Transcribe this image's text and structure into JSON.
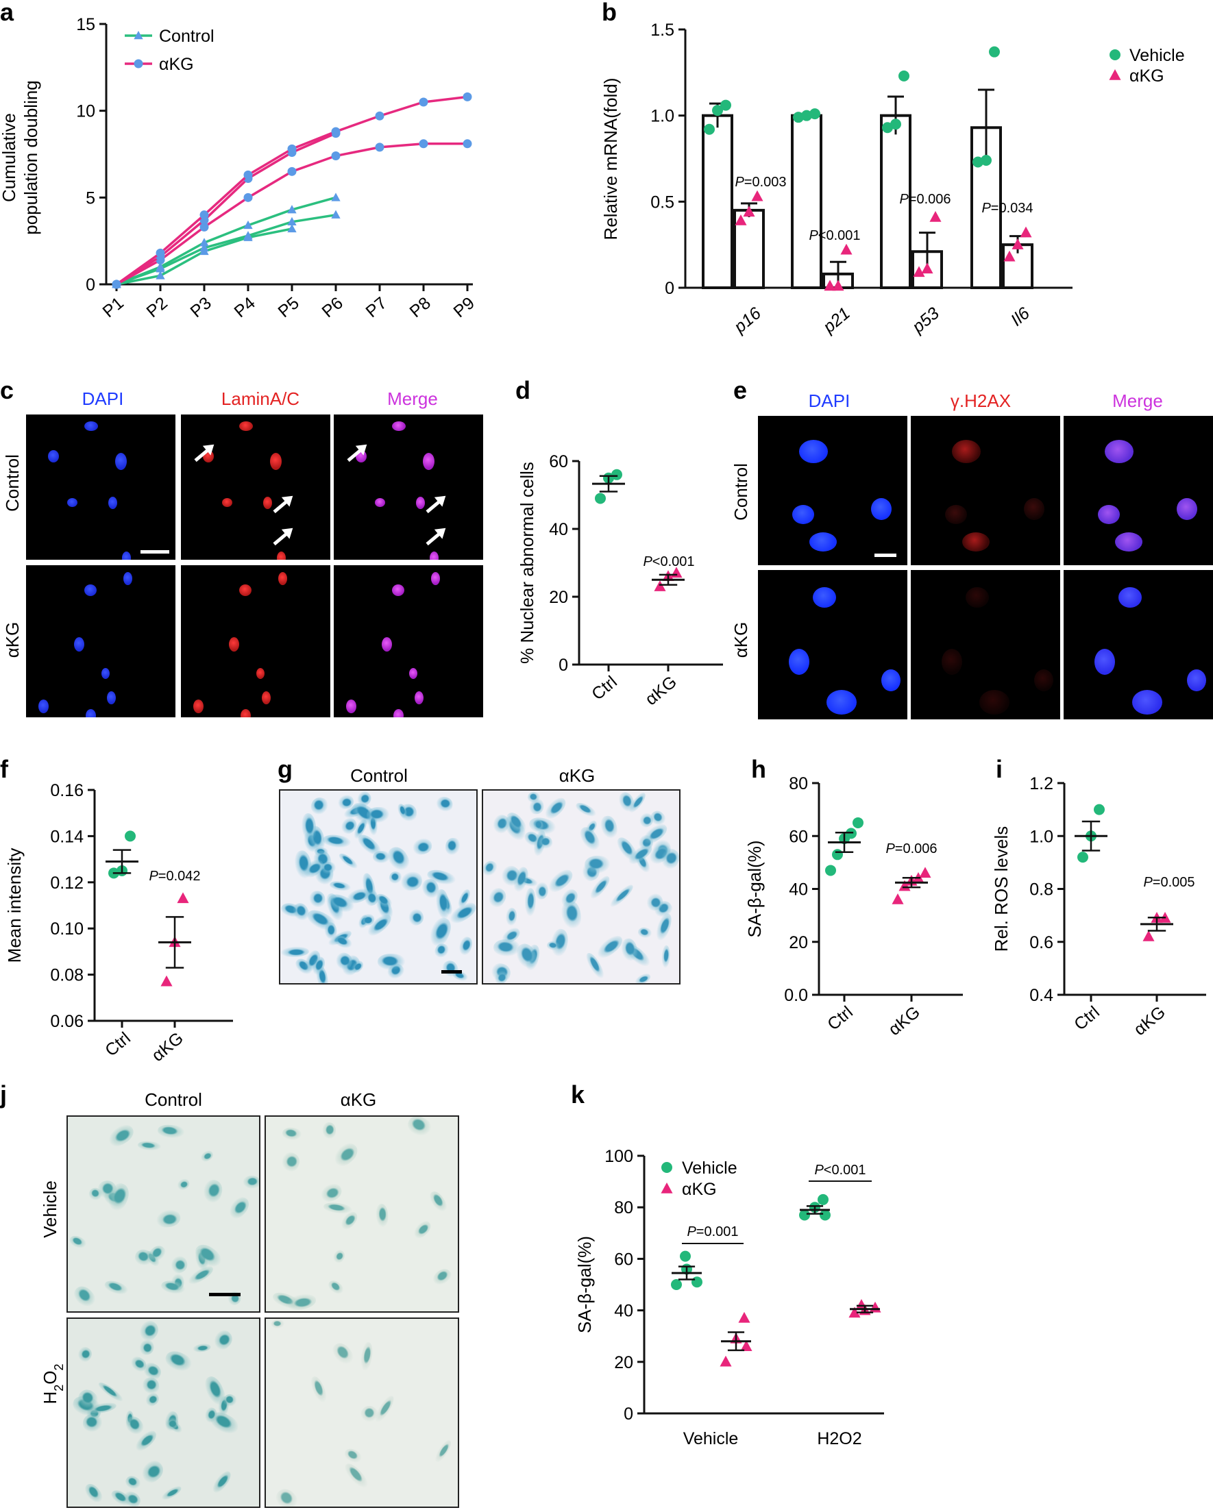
{
  "panels": {
    "a": "a",
    "b": "b",
    "c": "c",
    "d": "d",
    "e": "e",
    "f": "f",
    "g": "g",
    "h": "h",
    "i": "i",
    "j": "j",
    "k": "k"
  },
  "colors": {
    "green": "#23b87a",
    "magenta": "#e8257b",
    "line_green": "#2bbf7f",
    "line_magenta": "#e6297f",
    "marker_blue": "#5b9ae6",
    "dapi": "#1f3bff",
    "lamin": "#e32222",
    "merge": "#cc33dd",
    "xgal": "#3ba3c8"
  },
  "micrographs": {
    "c": {
      "headers": [
        "DAPI",
        "LaminA/C",
        "Merge"
      ],
      "rows": [
        "Control",
        "αKG"
      ]
    },
    "e": {
      "headers": [
        "DAPI",
        "γ.H2AX",
        "Merge"
      ],
      "rows": [
        "Control",
        "αKG"
      ]
    },
    "g": {
      "headers": [
        "Control",
        "αKG"
      ]
    },
    "j": {
      "headers": [
        "Control",
        "αKG"
      ],
      "rows": [
        "Vehicle",
        "H2O2"
      ]
    }
  },
  "chart_data": [
    {
      "panel": "a",
      "type": "line",
      "xlabel": "",
      "ylabel": "Cumulative\npopulation doubling",
      "ylabel_lines": [
        "Cumulative",
        "population doubling"
      ],
      "categories": [
        "P1",
        "P2",
        "P3",
        "P4",
        "P5",
        "P6",
        "P7",
        "P8",
        "P9"
      ],
      "ylim": [
        0,
        15
      ],
      "yticks": [
        0,
        5,
        10,
        15
      ],
      "legend": [
        "Control",
        "αKG"
      ],
      "legend_position": "top-left",
      "series": [
        {
          "name": "Control",
          "group": "Control",
          "values": [
            0,
            0.5,
            1.9,
            2.7,
            3.2,
            null,
            null,
            null,
            null
          ]
        },
        {
          "name": "Control",
          "group": "Control",
          "values": [
            0,
            0.9,
            2.1,
            2.8,
            3.6,
            4.0,
            null,
            null,
            null
          ]
        },
        {
          "name": "Control",
          "group": "Control",
          "values": [
            0,
            1.0,
            2.4,
            3.4,
            4.3,
            5.0,
            null,
            null,
            null
          ]
        },
        {
          "name": "αKG",
          "group": "αKG",
          "values": [
            0,
            1.4,
            3.3,
            5.0,
            6.5,
            7.4,
            7.9,
            8.1,
            8.1
          ]
        },
        {
          "name": "αKG",
          "group": "αKG",
          "values": [
            0,
            1.6,
            3.7,
            6.1,
            7.6,
            8.7,
            null,
            null,
            null
          ]
        },
        {
          "name": "αKG",
          "group": "αKG",
          "values": [
            0,
            1.8,
            4.0,
            6.3,
            7.8,
            8.8,
            9.7,
            10.5,
            10.8
          ]
        }
      ]
    },
    {
      "panel": "b",
      "type": "bar",
      "ylabel": "Relative mRNA(fold)",
      "categories": [
        "p16",
        "p21",
        "p53",
        "Il6"
      ],
      "ylim": [
        0,
        1.5
      ],
      "yticks": [
        "0",
        "0.5",
        "1.0",
        "1.5"
      ],
      "legend": [
        "Vehicle",
        "αKG"
      ],
      "legend_position": "top-right",
      "series": [
        {
          "name": "Vehicle",
          "values": [
            1.0,
            1.0,
            1.0,
            0.93
          ],
          "sem": [
            0.07,
            0.01,
            0.11,
            0.22
          ],
          "points": [
            [
              0.92,
              1.03,
              1.06
            ],
            [
              0.99,
              1.0,
              1.01
            ],
            [
              0.93,
              0.95,
              1.23
            ],
            [
              0.73,
              0.74,
              1.37
            ]
          ]
        },
        {
          "name": "αKG",
          "values": [
            0.45,
            0.08,
            0.21,
            0.25
          ],
          "sem": [
            0.04,
            0.07,
            0.11,
            0.05
          ],
          "points": [
            [
              0.39,
              0.44,
              0.53
            ],
            [
              0.01,
              0.01,
              0.22
            ],
            [
              0.09,
              0.11,
              0.41
            ],
            [
              0.18,
              0.25,
              0.32
            ]
          ]
        }
      ],
      "annotations": [
        "P=0.003",
        "P<0.001",
        "P=0.006",
        "P=0.034"
      ]
    },
    {
      "panel": "d",
      "type": "scatter",
      "ylabel": "% Nuclear abnormal cells",
      "categories": [
        "Ctrl",
        "αKG"
      ],
      "ylim": [
        0,
        60
      ],
      "yticks": [
        0,
        20,
        40,
        60
      ],
      "groups": [
        {
          "name": "Ctrl",
          "mean": 53.3,
          "sem": 2.3,
          "points": [
            49,
            55,
            56
          ]
        },
        {
          "name": "αKG",
          "mean": 25,
          "sem": 1.5,
          "points": [
            23,
            26,
            27
          ]
        }
      ],
      "annotations": [
        "P<0.001"
      ]
    },
    {
      "panel": "f",
      "type": "scatter",
      "ylabel": "Mean intensity",
      "categories": [
        "Ctrl",
        "αKG"
      ],
      "ylim": [
        0.06,
        0.16
      ],
      "yticks": [
        "0.06",
        "0.08",
        "0.10",
        "0.12",
        "0.14",
        "0.16"
      ],
      "groups": [
        {
          "name": "Ctrl",
          "mean": 0.129,
          "sem": 0.005,
          "points": [
            0.124,
            0.125,
            0.14
          ]
        },
        {
          "name": "αKG",
          "mean": 0.094,
          "sem": 0.011,
          "points": [
            0.077,
            0.094,
            0.113
          ]
        }
      ],
      "annotations": [
        "P=0.042"
      ]
    },
    {
      "panel": "h",
      "type": "scatter",
      "ylabel": "SA-β-gal(%)",
      "categories": [
        "Ctrl",
        "αKG"
      ],
      "ylim": [
        0,
        80
      ],
      "yticks": [
        "0.0",
        "20",
        "40",
        "60",
        "80"
      ],
      "groups": [
        {
          "name": "Ctrl",
          "mean": 57.6,
          "sem": 3.7,
          "points": [
            47,
            53,
            59,
            61,
            65
          ]
        },
        {
          "name": "αKG",
          "mean": 42.4,
          "sem": 1.8,
          "points": [
            36,
            41,
            43,
            44,
            46
          ]
        }
      ],
      "annotations": [
        "P=0.006"
      ]
    },
    {
      "panel": "i",
      "type": "scatter",
      "ylabel": "Rel. ROS levels",
      "categories": [
        "Ctrl",
        "αKG"
      ],
      "ylim": [
        0.4,
        1.2
      ],
      "yticks": [
        "0.4",
        "0.6",
        "0.8",
        "1.0",
        "1.2"
      ],
      "groups": [
        {
          "name": "Ctrl",
          "mean": 1.0,
          "sem": 0.055,
          "points": [
            0.92,
            1.0,
            1.1
          ]
        },
        {
          "name": "αKG",
          "mean": 0.667,
          "sem": 0.025,
          "points": [
            0.62,
            0.69,
            0.69
          ]
        }
      ],
      "annotations": [
        "P=0.005"
      ]
    },
    {
      "panel": "k",
      "type": "scatter",
      "ylabel": "SA-β-gal(%)",
      "categories": [
        "Vehicle",
        "H2O2"
      ],
      "ylim": [
        0,
        100
      ],
      "yticks": [
        0,
        20,
        40,
        60,
        80,
        100
      ],
      "legend": [
        "Vehicle",
        "αKG"
      ],
      "legend_position": "top-left",
      "groups": [
        {
          "name": "Vehicle",
          "series": "Vehicle",
          "mean": 54.5,
          "sem": 2.5,
          "points": [
            50,
            51,
            56,
            61
          ]
        },
        {
          "name": "Vehicle",
          "series": "αKG",
          "mean": 28,
          "sem": 3.5,
          "points": [
            20,
            26,
            29,
            37
          ]
        },
        {
          "name": "H2O2",
          "series": "Vehicle",
          "mean": 79,
          "sem": 1.5,
          "points": [
            77,
            77,
            80,
            83
          ]
        },
        {
          "name": "H2O2",
          "series": "αKG",
          "mean": 40.5,
          "sem": 1.3,
          "points": [
            39,
            40,
            41,
            42
          ]
        }
      ],
      "annotations": [
        "P=0.001",
        "P<0.001"
      ]
    }
  ]
}
